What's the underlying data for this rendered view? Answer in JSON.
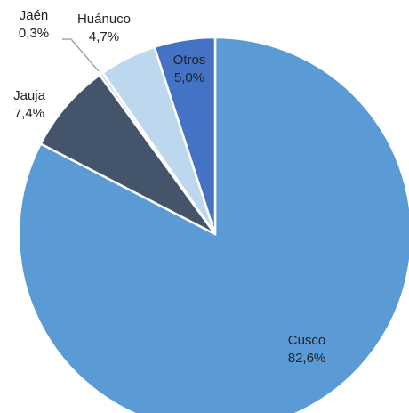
{
  "chart_data": {
    "type": "pie",
    "categories": [
      "Cusco",
      "Jauja",
      "Jaén",
      "Huánuco",
      "Otros"
    ],
    "values": [
      82.6,
      7.4,
      0.3,
      4.7,
      5.0
    ],
    "value_labels": [
      "82,6%",
      "7,4%",
      "0,3%",
      "4,7%",
      "5,0%"
    ],
    "colors": [
      "#5b9bd5",
      "#44546a",
      "#d9d9d9",
      "#bdd7ee",
      "#4472c4"
    ]
  }
}
